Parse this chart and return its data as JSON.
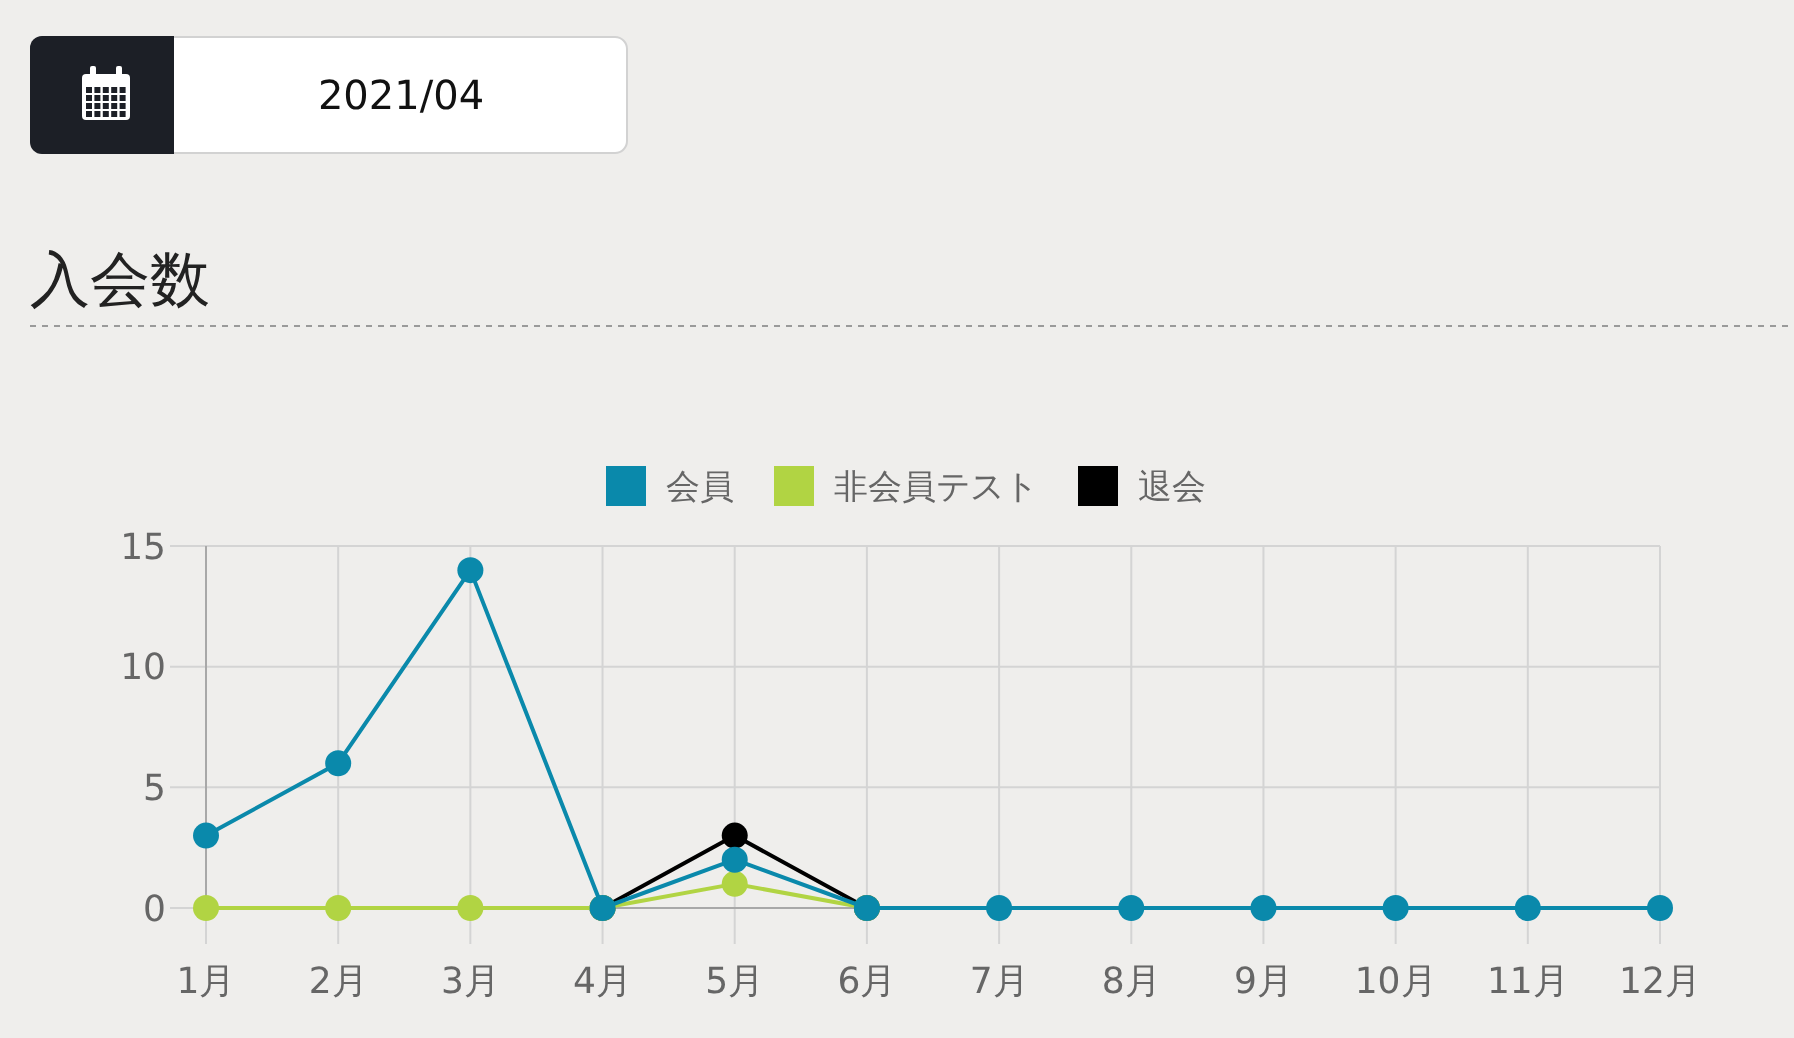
{
  "chart_data": {
    "type": "line",
    "title": "入会数",
    "annotations": [
      "2021/04"
    ],
    "categories": [
      "1月",
      "2月",
      "3月",
      "4月",
      "5月",
      "6月",
      "7月",
      "8月",
      "9月",
      "10月",
      "11月",
      "12月"
    ],
    "series": [
      {
        "name": "会員",
        "color": "#0a89ab",
        "values": [
          3,
          6,
          14,
          0,
          2,
          0,
          0,
          0,
          0,
          0,
          0,
          0
        ]
      },
      {
        "name": "非会員テスト",
        "color": "#b1d443",
        "values": [
          0,
          0,
          0,
          0,
          1,
          0,
          null,
          null,
          null,
          null,
          null,
          null
        ]
      },
      {
        "name": "退会",
        "color": "#000000",
        "values": [
          null,
          null,
          null,
          0,
          3,
          0,
          null,
          null,
          null,
          null,
          null,
          null
        ]
      }
    ],
    "ylim": [
      0,
      15
    ],
    "yticks": [
      0,
      5,
      10,
      15
    ],
    "grid": true,
    "legend": "top",
    "marker": "circle",
    "line_style": "solid"
  }
}
